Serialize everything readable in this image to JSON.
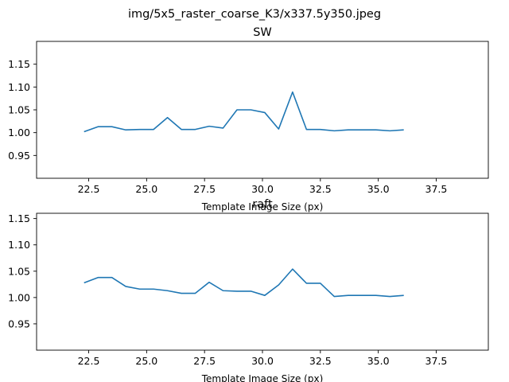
{
  "figure": {
    "suptitle": "img/5x5_raster_coarse_K3/x337.5y350.jpeg"
  },
  "colors": {
    "line": "#1f77b4"
  },
  "chart_data": [
    {
      "type": "line",
      "title": "SW",
      "xlabel": "Template Image Size (px)",
      "ylabel": "",
      "xlim": [
        20.25,
        39.75
      ],
      "ylim": [
        0.9,
        1.2
      ],
      "xticks": [
        22.5,
        25.0,
        27.5,
        30.0,
        32.5,
        35.0,
        37.5
      ],
      "xtick_labels": [
        "22.5",
        "25.0",
        "27.5",
        "30.0",
        "32.5",
        "35.0",
        "37.5"
      ],
      "yticks": [
        0.95,
        1.0,
        1.05,
        1.1,
        1.15
      ],
      "ytick_labels": [
        "0.95",
        "1.00",
        "1.05",
        "1.10",
        "1.15"
      ],
      "grid": false,
      "series": [
        {
          "x": [
            22.3,
            22.9,
            23.5,
            24.1,
            24.7,
            25.3,
            25.9,
            26.5,
            27.1,
            27.7,
            28.3,
            28.9,
            29.5,
            30.1,
            30.7,
            31.3,
            31.9,
            32.5,
            33.1,
            33.7,
            34.3,
            34.9,
            35.5,
            36.1
          ],
          "values": [
            1.002,
            1.013,
            1.013,
            1.006,
            1.007,
            1.007,
            1.033,
            1.007,
            1.007,
            1.014,
            1.01,
            1.05,
            1.05,
            1.044,
            1.008,
            1.089,
            1.007,
            1.007,
            1.004,
            1.006,
            1.006,
            1.006,
            1.004,
            1.006
          ]
        }
      ]
    },
    {
      "type": "line",
      "title": "raft",
      "xlabel": "Template Image Size (px)",
      "ylabel": "",
      "xlim": [
        20.25,
        39.75
      ],
      "ylim": [
        0.9,
        1.16
      ],
      "xticks": [
        22.5,
        25.0,
        27.5,
        30.0,
        32.5,
        35.0,
        37.5
      ],
      "xtick_labels": [
        "22.5",
        "25.0",
        "27.5",
        "30.0",
        "32.5",
        "35.0",
        "37.5"
      ],
      "yticks": [
        0.95,
        1.0,
        1.05,
        1.1,
        1.15
      ],
      "ytick_labels": [
        "0.95",
        "1.00",
        "1.05",
        "1.10",
        "1.15"
      ],
      "grid": false,
      "series": [
        {
          "x": [
            22.3,
            22.9,
            23.5,
            24.1,
            24.7,
            25.3,
            25.9,
            26.5,
            27.1,
            27.7,
            28.3,
            28.9,
            29.5,
            30.1,
            30.7,
            31.3,
            31.9,
            32.5,
            33.1,
            33.7,
            34.3,
            34.9,
            35.5,
            36.1
          ],
          "values": [
            1.028,
            1.038,
            1.038,
            1.021,
            1.016,
            1.016,
            1.013,
            1.008,
            1.008,
            1.029,
            1.013,
            1.012,
            1.012,
            1.004,
            1.024,
            1.054,
            1.027,
            1.027,
            1.002,
            1.004,
            1.004,
            1.004,
            1.002,
            1.004
          ]
        }
      ]
    }
  ]
}
